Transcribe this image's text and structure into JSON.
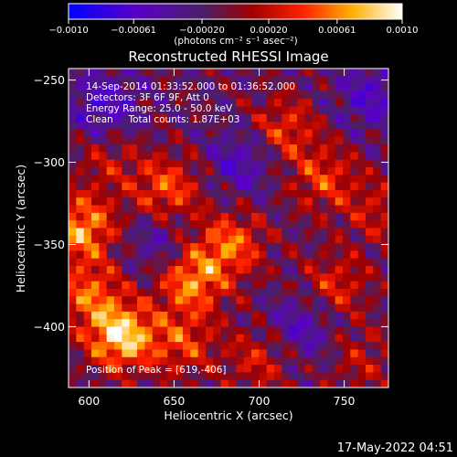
{
  "chart_data": {
    "type": "heatmap",
    "title": "Reconstructed RHESSI Image",
    "xlabel": "Heliocentric X (arcsec)",
    "ylabel": "Heliocentric Y (arcsec)",
    "xlim": [
      588,
      776
    ],
    "ylim": [
      -437,
      -243
    ],
    "xticks": [
      600,
      650,
      700,
      750
    ],
    "yticks": [
      -250,
      -300,
      -350,
      -400
    ],
    "x_tick_labels": [
      "600",
      "650",
      "700",
      "750"
    ],
    "y_tick_labels": [
      "−250",
      "−300",
      "−350",
      "−400"
    ],
    "colorbar": {
      "range": [
        -0.001,
        0.001
      ],
      "tick_labels": [
        "−0.0010",
        "−0.00061",
        "−0.00020",
        "0.00020",
        "0.00061",
        "0.0010"
      ],
      "ticks": [
        -0.001,
        -0.00061,
        -0.0002,
        0.0002,
        0.00061,
        0.001
      ],
      "unit_label": "(photons cm⁻² s⁻¹ asec⁻²)",
      "colors": [
        "#0000ff",
        "#6600aa",
        "#4a1f6a",
        "#ff0000",
        "#ffc000",
        "#ffffff"
      ]
    },
    "annotations": [
      "14-Sep-2014 01:33:52.000 to 01:36:52.000",
      "Detectors: 3F 6F 9F, Att 0",
      "Energy Range: 25.0 - 50.0 keV",
      "Clean     Total counts: 1.87E+03",
      "Position of Peak = [619,-406]"
    ],
    "peak": {
      "x": 619,
      "y": -406
    },
    "hotspots": [
      {
        "x": 619,
        "y": -406,
        "value": 0.001
      },
      {
        "x": 596,
        "y": -340,
        "value": 0.0008
      },
      {
        "x": 660,
        "y": -372,
        "value": 0.00075
      },
      {
        "x": 683,
        "y": -350,
        "value": 0.00065
      },
      {
        "x": 646,
        "y": -316,
        "value": 0.0006
      },
      {
        "x": 600,
        "y": -380,
        "value": 0.0006
      },
      {
        "x": 715,
        "y": -280,
        "value": 0.0005
      },
      {
        "x": 738,
        "y": -310,
        "value": 0.0005
      },
      {
        "x": 745,
        "y": -375,
        "value": 0.00045
      },
      {
        "x": 700,
        "y": -420,
        "value": 0.0004
      },
      {
        "x": 655,
        "y": -410,
        "value": 0.0005
      },
      {
        "x": 770,
        "y": -330,
        "value": 0.00035
      },
      {
        "x": 760,
        "y": -420,
        "value": 0.0003
      },
      {
        "x": 612,
        "y": -300,
        "value": 0.0003
      }
    ],
    "coolspots": [
      {
        "x": 610,
        "y": -265,
        "value": -0.00045
      },
      {
        "x": 690,
        "y": -300,
        "value": -0.0004
      },
      {
        "x": 765,
        "y": -260,
        "value": -0.0004
      },
      {
        "x": 725,
        "y": -400,
        "value": -0.0004
      },
      {
        "x": 640,
        "y": -350,
        "value": -0.0003
      }
    ]
  },
  "footer": {
    "timestamp": "17-May-2022 04:51"
  }
}
